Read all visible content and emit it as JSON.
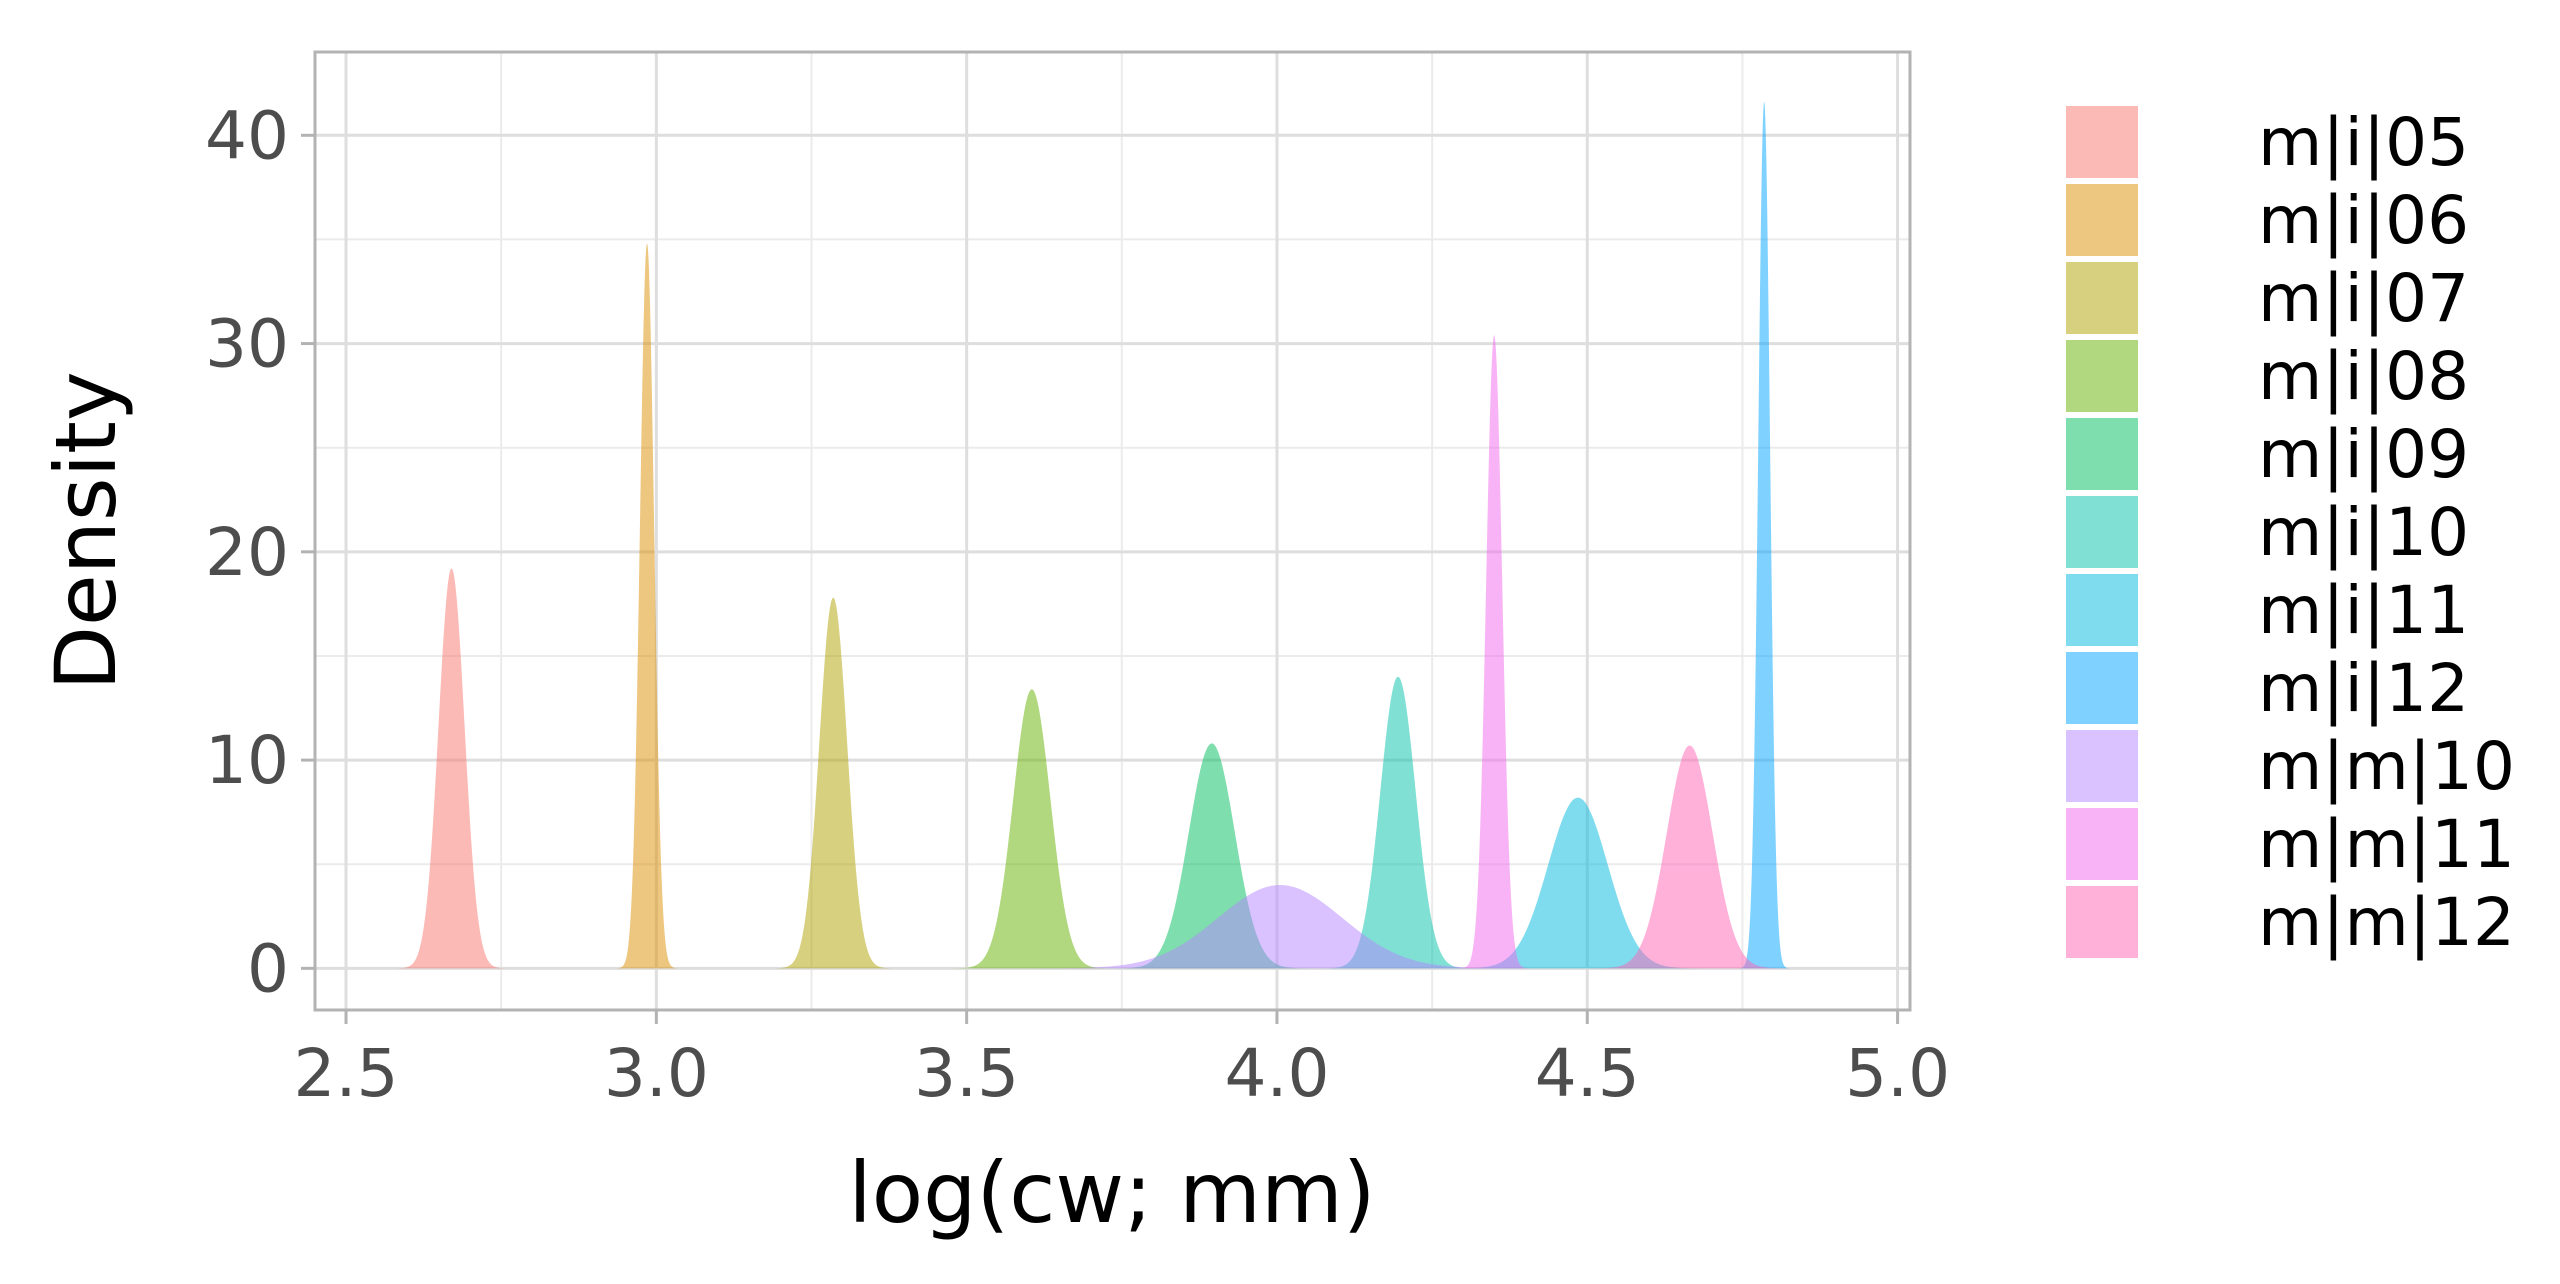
{
  "chart_data": {
    "type": "area",
    "subtype": "density",
    "title": "",
    "xlabel": "log(cw; mm)",
    "ylabel": "Density",
    "xlim": [
      2.45,
      5.02
    ],
    "ylim": [
      -2,
      44
    ],
    "xticks": [
      2.5,
      3.0,
      3.5,
      4.0,
      4.5,
      5.0
    ],
    "xtick_labels": [
      "2.5",
      "3.0",
      "3.5",
      "4.0",
      "4.5",
      "5.0"
    ],
    "yticks": [
      0,
      10,
      20,
      30,
      40
    ],
    "ytick_labels": [
      "0",
      "10",
      "20",
      "30",
      "40"
    ],
    "grid": true,
    "legend_position": "right",
    "fill_opacity": 0.5,
    "series": [
      {
        "name": "m|i|05",
        "color": "#F8766D",
        "mean": 2.67,
        "sd": 0.021,
        "peak": 19.2
      },
      {
        "name": "m|i|06",
        "color": "#DB8E00",
        "mean": 2.985,
        "sd": 0.0115,
        "peak": 34.8
      },
      {
        "name": "m|i|07",
        "color": "#AEA200",
        "mean": 3.285,
        "sd": 0.0225,
        "peak": 17.8
      },
      {
        "name": "m|i|08",
        "color": "#64B200",
        "mean": 3.605,
        "sd": 0.03,
        "peak": 13.4
      },
      {
        "name": "m|i|09",
        "color": "#00BD5C",
        "mean": 3.895,
        "sd": 0.037,
        "peak": 10.8
      },
      {
        "name": "m|i|10",
        "color": "#00C1A7",
        "mean": 4.195,
        "sd": 0.0285,
        "peak": 14.0
      },
      {
        "name": "m|i|11",
        "color": "#00BADE",
        "mean": 4.485,
        "sd": 0.048,
        "peak": 8.2
      },
      {
        "name": "m|i|12",
        "color": "#00A6FF",
        "mean": 4.785,
        "sd": 0.0095,
        "peak": 41.6
      },
      {
        "name": "m|m|10",
        "color": "#B385FF",
        "mean": 4.005,
        "sd": 0.1,
        "peak": 4.0
      },
      {
        "name": "m|m|11",
        "color": "#EF67EB",
        "mean": 4.35,
        "sd": 0.013,
        "peak": 30.4
      },
      {
        "name": "m|m|12",
        "color": "#FF63B6",
        "mean": 4.665,
        "sd": 0.037,
        "peak": 10.7
      }
    ]
  }
}
